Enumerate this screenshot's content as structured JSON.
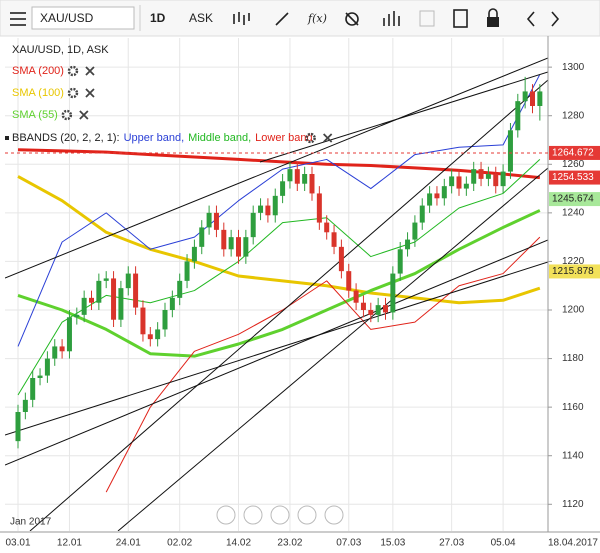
{
  "toolbar": {
    "symbol": "XAU/USD",
    "interval": "1D",
    "side": "ASK"
  },
  "chart_data": {
    "type": "candlestick",
    "title": "XAU/USD, 1D, ASK",
    "period_label": "Jan 2017",
    "end_date": "18.04.2017",
    "categories": [
      "03.01",
      null,
      null,
      null,
      null,
      null,
      null,
      "12.01",
      null,
      null,
      null,
      null,
      null,
      null,
      null,
      "24.01",
      null,
      null,
      null,
      null,
      null,
      null,
      "02.02",
      null,
      null,
      null,
      null,
      null,
      null,
      null,
      "14.02",
      null,
      null,
      null,
      null,
      null,
      null,
      "23.02",
      null,
      null,
      null,
      null,
      null,
      null,
      null,
      "07.03",
      null,
      null,
      null,
      null,
      null,
      "15.03",
      null,
      null,
      null,
      null,
      null,
      null,
      null,
      "27.03",
      null,
      null,
      null,
      null,
      null,
      null,
      "05.04",
      null,
      null,
      null,
      null,
      null
    ],
    "open": [
      1146,
      1158,
      1163,
      1172,
      1173,
      1180,
      1185,
      1183,
      1197,
      1198,
      1205,
      1203,
      1212,
      1213,
      1196,
      1209,
      1215,
      1201,
      1190,
      1188,
      1192,
      1200,
      1205,
      1212,
      1220,
      1226,
      1234,
      1240,
      1233,
      1225,
      1230,
      1222,
      1230,
      1240,
      1243,
      1239,
      1247,
      1253,
      1258,
      1252,
      1256,
      1248,
      1236,
      1232,
      1226,
      1216,
      1208,
      1203,
      1200,
      1198,
      1202,
      1199,
      1215,
      1225,
      1229,
      1236,
      1243,
      1248,
      1246,
      1251,
      1255,
      1250,
      1252,
      1258,
      1254,
      1256,
      1251,
      1257,
      1274,
      1286,
      1290,
      1284
    ],
    "high": [
      1161,
      1166,
      1175,
      1176,
      1183,
      1188,
      1188,
      1200,
      1201,
      1208,
      1208,
      1215,
      1216,
      1216,
      1212,
      1218,
      1218,
      1204,
      1193,
      1195,
      1203,
      1208,
      1215,
      1223,
      1229,
      1237,
      1243,
      1243,
      1236,
      1233,
      1233,
      1233,
      1243,
      1246,
      1246,
      1250,
      1256,
      1261,
      1261,
      1259,
      1259,
      1251,
      1239,
      1235,
      1229,
      1219,
      1211,
      1206,
      1203,
      1205,
      1205,
      1218,
      1228,
      1232,
      1239,
      1246,
      1251,
      1251,
      1254,
      1258,
      1258,
      1255,
      1261,
      1261,
      1259,
      1259,
      1260,
      1277,
      1289,
      1296,
      1293,
      1293
    ],
    "low": [
      1143,
      1155,
      1160,
      1169,
      1170,
      1177,
      1180,
      1180,
      1194,
      1195,
      1200,
      1200,
      1209,
      1193,
      1193,
      1206,
      1198,
      1187,
      1185,
      1185,
      1189,
      1197,
      1202,
      1209,
      1217,
      1223,
      1231,
      1230,
      1222,
      1222,
      1219,
      1219,
      1227,
      1237,
      1236,
      1236,
      1244,
      1250,
      1249,
      1249,
      1245,
      1233,
      1229,
      1223,
      1213,
      1205,
      1200,
      1197,
      1195,
      1195,
      1196,
      1196,
      1212,
      1222,
      1226,
      1233,
      1240,
      1243,
      1243,
      1248,
      1247,
      1247,
      1249,
      1251,
      1251,
      1248,
      1248,
      1254,
      1271,
      1283,
      1281,
      1278
    ],
    "close": [
      1158,
      1163,
      1172,
      1173,
      1180,
      1185,
      1183,
      1197,
      1198,
      1205,
      1203,
      1212,
      1213,
      1196,
      1209,
      1215,
      1201,
      1190,
      1188,
      1192,
      1200,
      1205,
      1212,
      1220,
      1226,
      1234,
      1240,
      1233,
      1225,
      1230,
      1222,
      1230,
      1240,
      1243,
      1239,
      1247,
      1253,
      1258,
      1252,
      1256,
      1248,
      1236,
      1232,
      1226,
      1216,
      1208,
      1203,
      1200,
      1198,
      1202,
      1199,
      1215,
      1225,
      1229,
      1236,
      1243,
      1248,
      1246,
      1251,
      1255,
      1250,
      1252,
      1258,
      1254,
      1256,
      1251,
      1257,
      1274,
      1286,
      1290,
      1284,
      1290
    ],
    "up_color": "#2e9e3e",
    "down_color": "#d9342b",
    "ylim": [
      1109,
      1312
    ],
    "yticks": [
      1120,
      1140,
      1160,
      1180,
      1200,
      1220,
      1240,
      1260,
      1280,
      1300
    ],
    "grid": true,
    "series": [
      {
        "name": "SMA (200)",
        "color": "#e0231a",
        "width": 3,
        "x": [
          0,
          6,
          12,
          18,
          24,
          30,
          36,
          42,
          48,
          54,
          60,
          66,
          71
        ],
        "values": [
          1266,
          1265.5,
          1265,
          1264,
          1263,
          1262,
          1261,
          1260,
          1259.5,
          1258.5,
          1257.5,
          1256,
          1254.5
        ]
      },
      {
        "name": "SMA (100)",
        "color": "#e8c600",
        "width": 3,
        "x": [
          0,
          6,
          12,
          18,
          24,
          30,
          36,
          42,
          48,
          54,
          60,
          66,
          71
        ],
        "values": [
          1255,
          1245,
          1232,
          1225,
          1220,
          1214,
          1212,
          1210,
          1207,
          1205,
          1203,
          1204,
          1209
        ]
      },
      {
        "name": "SMA (55)",
        "color": "#5fd12e",
        "width": 3,
        "x": [
          0,
          6,
          12,
          18,
          24,
          30,
          36,
          42,
          48,
          54,
          60,
          66,
          71
        ],
        "values": [
          1206,
          1200,
          1192,
          1182,
          1181,
          1186,
          1192,
          1200,
          1208,
          1215,
          1225,
          1234,
          1241
        ]
      },
      {
        "name": "Upper band,",
        "color": "#2a3fd6",
        "width": 1,
        "x": [
          0,
          6,
          12,
          18,
          24,
          30,
          36,
          42,
          48,
          54,
          60,
          66,
          71
        ],
        "values": [
          1185,
          1228,
          1240,
          1225,
          1230,
          1245,
          1258,
          1262,
          1250,
          1264,
          1267,
          1268,
          1297
        ]
      },
      {
        "name": "Middle band,",
        "color": "#22b822",
        "width": 1,
        "x": [
          0,
          6,
          12,
          18,
          24,
          30,
          36,
          42,
          48,
          54,
          60,
          66,
          71
        ],
        "values": [
          1165,
          1195,
          1206,
          1203,
          1208,
          1220,
          1236,
          1238,
          1222,
          1228,
          1242,
          1248,
          1262
        ]
      },
      {
        "name": "Lower band",
        "color": "#e0231a",
        "width": 1,
        "x": [
          0,
          6,
          12,
          18,
          24,
          30,
          36,
          42,
          48,
          54,
          60,
          66,
          71
        ],
        "values": [
          null,
          null,
          1125,
          1160,
          1183,
          1190,
          1200,
          1212,
          1192,
          1195,
          1210,
          1215,
          1230
        ]
      }
    ],
    "bbands_label": "BBANDS (20, 2, 2, 1):",
    "price_markers": [
      {
        "value": 1264.672,
        "color": "#e53935",
        "text_color": "#ffffff",
        "dashed": true
      },
      {
        "value": 1254.533,
        "color": "#e53935",
        "text_color": "#ffffff"
      },
      {
        "value": 1245.674,
        "color": "#a8e89a",
        "text_color": "#222222"
      },
      {
        "value": 1215.878,
        "color": "#f2e15a",
        "text_color": "#222222"
      }
    ]
  }
}
